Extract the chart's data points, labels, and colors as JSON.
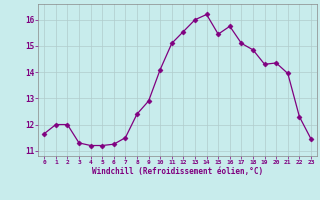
{
  "x": [
    0,
    1,
    2,
    3,
    4,
    5,
    6,
    7,
    8,
    9,
    10,
    11,
    12,
    13,
    14,
    15,
    16,
    17,
    18,
    19,
    20,
    21,
    22,
    23
  ],
  "y": [
    11.65,
    12.0,
    12.0,
    11.3,
    11.2,
    11.2,
    11.25,
    11.5,
    12.4,
    12.9,
    14.1,
    15.1,
    15.55,
    16.0,
    16.2,
    15.45,
    15.75,
    15.1,
    14.85,
    14.3,
    14.35,
    13.95,
    12.3,
    11.45
  ],
  "line_color": "#800080",
  "marker": "D",
  "marker_size": 2.5,
  "bg_color": "#c8ecec",
  "grid_color": "#b0cccc",
  "xlabel": "Windchill (Refroidissement éolien,°C)",
  "xlabel_color": "#800080",
  "tick_color": "#800080",
  "ylim": [
    10.8,
    16.6
  ],
  "xlim": [
    -0.5,
    23.5
  ],
  "yticks": [
    11,
    12,
    13,
    14,
    15,
    16
  ],
  "xticks": [
    0,
    1,
    2,
    3,
    4,
    5,
    6,
    7,
    8,
    9,
    10,
    11,
    12,
    13,
    14,
    15,
    16,
    17,
    18,
    19,
    20,
    21,
    22,
    23
  ]
}
